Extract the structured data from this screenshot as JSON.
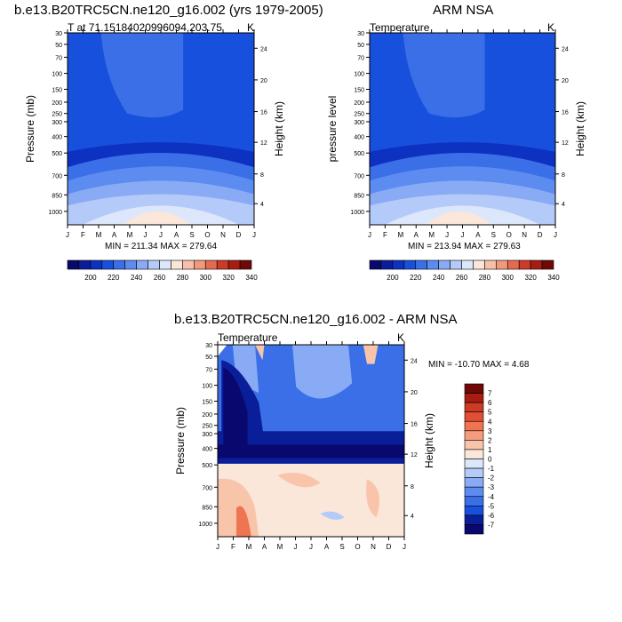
{
  "chart_data": [
    {
      "type": "heatmap",
      "title": "b.e13.B20TRC5CN.ne120_g16.002 (yrs 1979-2005)",
      "subtitle": "T at 71.15184020996094,203.75",
      "units": "K",
      "ylabel": "Pressure (mb)",
      "ylabel_right": "Height (km)",
      "stats": "MIN = 211.34 MAX = 279.64",
      "x_ticks": [
        "J",
        "F",
        "M",
        "A",
        "M",
        "J",
        "J",
        "A",
        "S",
        "O",
        "N",
        "D",
        "J"
      ],
      "y_ticks": [
        "30",
        "50",
        "70",
        "100",
        "150",
        "200",
        "250",
        "300",
        "400",
        "500",
        "700",
        "850",
        "1000"
      ],
      "y_ticks_right": [
        "24",
        "20",
        "16",
        "12",
        "8",
        "4"
      ],
      "colorbar_labels": [
        "200",
        "220",
        "240",
        "260",
        "280",
        "300",
        "320",
        "340"
      ]
    },
    {
      "type": "heatmap",
      "title": "ARM NSA",
      "subtitle": "Temperature",
      "units": "K",
      "ylabel": "pressure level",
      "ylabel_right": "Height (km)",
      "stats": "MIN = 213.94 MAX = 279.63",
      "x_ticks": [
        "J",
        "F",
        "M",
        "A",
        "M",
        "J",
        "J",
        "A",
        "S",
        "O",
        "N",
        "D",
        "J"
      ],
      "y_ticks": [
        "30",
        "50",
        "70",
        "100",
        "150",
        "200",
        "250",
        "300",
        "400",
        "500",
        "700",
        "850",
        "1000"
      ],
      "y_ticks_right": [
        "24",
        "20",
        "16",
        "12",
        "8",
        "4"
      ],
      "colorbar_labels": [
        "200",
        "220",
        "240",
        "260",
        "280",
        "300",
        "320",
        "340"
      ]
    },
    {
      "type": "heatmap",
      "title": "b.e13.B20TRC5CN.ne120_g16.002 - ARM NSA",
      "subtitle": "Temperature",
      "units": "K",
      "ylabel": "Pressure (mb)",
      "ylabel_right": "Height (km)",
      "stats": "MIN = -10.70 MAX =   4.68",
      "x_ticks": [
        "J",
        "F",
        "M",
        "A",
        "M",
        "J",
        "J",
        "A",
        "S",
        "O",
        "N",
        "D",
        "J"
      ],
      "y_ticks": [
        "30",
        "50",
        "70",
        "100",
        "150",
        "200",
        "250",
        "300",
        "400",
        "500",
        "700",
        "850",
        "1000"
      ],
      "y_ticks_right": [
        "24",
        "20",
        "16",
        "12",
        "8",
        "4"
      ],
      "colorbar_labels": [
        "7",
        "6",
        "5",
        "4",
        "3",
        "2",
        "1",
        "0",
        "-1",
        "-2",
        "-3",
        "-4",
        "-5",
        "-6",
        "-7"
      ]
    }
  ]
}
